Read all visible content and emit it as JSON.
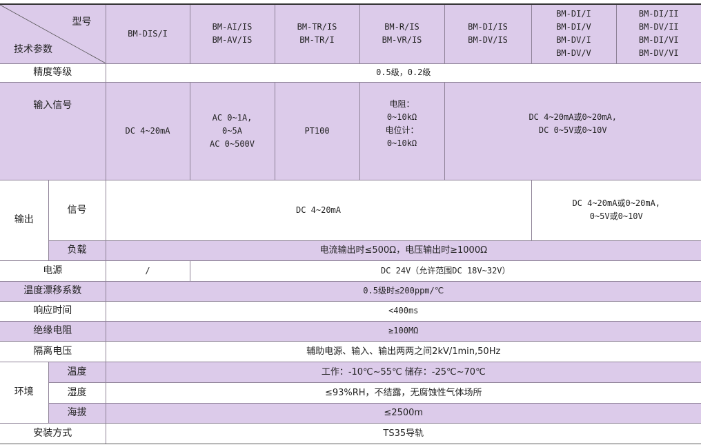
{
  "header": {
    "corner_top": "型号",
    "corner_bottom": "技术参数",
    "models": [
      "BM-DIS/I",
      "BM-AI/IS\nBM-AV/IS",
      "BM-TR/IS\nBM-TR/I",
      "BM-R/IS\nBM-VR/IS",
      "BM-DI/IS\nBM-DV/IS",
      "BM-DI/I\nBM-DI/V\nBM-DV/I\nBM-DV/V",
      "BM-DI/II\nBM-DV/II\nBM-DI/VI\nBM-DV/VI"
    ]
  },
  "accuracy": {
    "label": "精度等级",
    "value": "0.5级，0.2级"
  },
  "input": {
    "label": "输入信号",
    "values": [
      "DC 4~20mA",
      "AC 0~1A,\n0~5A\nAC 0~500V",
      "PT100",
      "电阻：\n0~10kΩ\n电位计：\n0~10kΩ",
      "DC 4~20mA或0~20mA,\nDC 0~5V或0~10V"
    ]
  },
  "output": {
    "label": "输出",
    "signal_label": "信号",
    "signal_values": [
      "DC 4~20mA",
      "DC 4~20mA或0~20mA,\n0~5V或0~10V"
    ],
    "load_label": "负载",
    "load_value": "电流输出时≤500Ω，电压输出时≥1000Ω"
  },
  "power": {
    "label": "电源",
    "values": [
      "/",
      "DC 24V（允许范围DC 18V~32V）"
    ]
  },
  "temp_drift": {
    "label": "温度漂移系数",
    "value": "0.5级时≤200ppm/℃"
  },
  "response": {
    "label": "响应时间",
    "value": "<400ms"
  },
  "insulation": {
    "label": "绝缘电阻",
    "value": "≥100MΩ"
  },
  "isolation": {
    "label": "隔离电压",
    "value": "辅助电源、输入、输出两两之间2kV/1min,50Hz"
  },
  "environment": {
    "label": "环境",
    "temperature": {
      "label": "温度",
      "value": "工作：-10℃~55℃   储存：-25℃~70℃"
    },
    "humidity": {
      "label": "湿度",
      "value": "≤93%RH，不结露，无腐蚀性气体场所"
    },
    "altitude": {
      "label": "海拔",
      "value": "≤2500m"
    }
  },
  "mounting": {
    "label": "安装方式",
    "value": "TS35导轨"
  },
  "colors": {
    "row_highlight": "#dccbea",
    "border": "#8d8196"
  }
}
